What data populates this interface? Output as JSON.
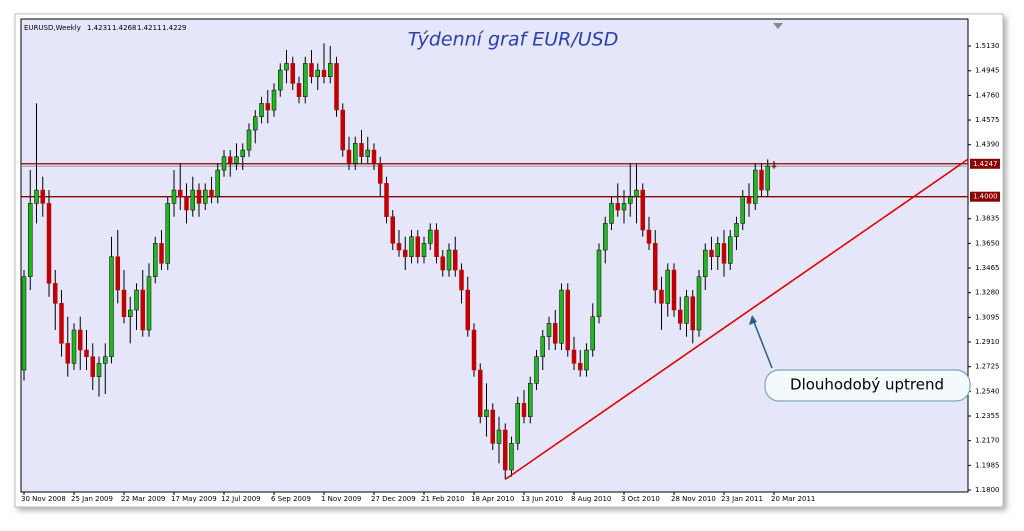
{
  "chart_data": {
    "type": "candlestick",
    "title": "Týdenní graf EUR/USD",
    "symbol": "EURUSD,Weekly",
    "annotation": "Dlouhodobý uptrend",
    "categories": [
      "30 Nov 2008",
      null,
      null,
      null,
      null,
      null,
      null,
      null,
      "25 Jan 2009",
      null,
      null,
      null,
      null,
      null,
      null,
      null,
      "22 Mar 2009",
      null,
      null,
      null,
      null,
      null,
      null,
      null,
      "17 May 2009",
      null,
      null,
      null,
      null,
      null,
      null,
      null,
      "12 Jul 2009",
      null,
      null,
      null,
      null,
      null,
      null,
      null,
      "6 Sep 2009",
      null,
      null,
      null,
      null,
      null,
      null,
      null,
      "1 Nov 2009",
      null,
      null,
      null,
      null,
      null,
      null,
      null,
      "27 Dec 2009",
      null,
      null,
      null,
      null,
      null,
      null,
      null,
      "21 Feb 2010",
      null,
      null,
      null,
      null,
      null,
      null,
      null,
      "18 Apr 2010",
      null,
      null,
      null,
      null,
      null,
      null,
      null,
      "13 Jun 2010",
      null,
      null,
      null,
      null,
      null,
      null,
      null,
      "8 Aug 2010",
      null,
      null,
      null,
      null,
      null,
      null,
      null,
      "3 Oct 2010",
      null,
      null,
      null,
      null,
      null,
      null,
      null,
      "28 Nov 2010",
      null,
      null,
      null,
      null,
      null,
      null,
      null,
      "23 Jan 2011",
      null,
      null,
      null,
      null,
      null,
      null,
      null,
      "20 Mar 2011"
    ],
    "open": [
      1.27,
      1.34,
      1.395,
      1.405,
      1.395,
      1.335,
      1.32,
      1.29,
      1.275,
      1.3,
      1.285,
      1.28,
      1.265,
      1.275,
      1.28,
      1.355,
      1.33,
      1.31,
      1.315,
      1.33,
      1.3,
      1.34,
      1.365,
      1.35,
      1.395,
      1.405,
      1.4,
      1.39,
      1.405,
      1.395,
      1.405,
      1.4,
      1.42,
      1.43,
      1.425,
      1.43,
      1.435,
      1.45,
      1.46,
      1.47,
      1.465,
      1.48,
      1.495,
      1.5,
      1.485,
      1.475,
      1.5,
      1.49,
      1.495,
      1.49,
      1.5,
      1.465,
      1.435,
      1.425,
      1.44,
      1.43,
      1.435,
      1.425,
      1.41,
      1.385,
      1.365,
      1.36,
      1.355,
      1.37,
      1.355,
      1.365,
      1.375,
      1.355,
      1.345,
      1.36,
      1.345,
      1.33,
      1.3,
      1.27,
      1.235,
      1.24,
      1.215,
      1.225,
      1.195,
      1.215,
      1.245,
      1.235,
      1.26,
      1.28,
      1.295,
      1.305,
      1.29,
      1.33,
      1.285,
      1.275,
      1.27,
      1.285,
      1.31,
      1.36,
      1.38,
      1.395,
      1.39,
      1.395,
      1.4,
      1.405,
      1.375,
      1.365,
      1.33,
      1.32,
      1.345,
      1.315,
      1.305,
      1.325,
      1.3,
      1.34,
      1.36,
      1.355,
      1.365,
      1.35,
      1.37,
      1.38,
      1.4,
      1.395,
      1.42,
      1.405,
      1.4231
    ],
    "high": [
      1.345,
      1.42,
      1.47,
      1.415,
      1.405,
      1.345,
      1.33,
      1.31,
      1.305,
      1.31,
      1.3,
      1.29,
      1.28,
      1.29,
      1.37,
      1.375,
      1.345,
      1.325,
      1.335,
      1.345,
      1.35,
      1.37,
      1.375,
      1.4,
      1.42,
      1.425,
      1.41,
      1.415,
      1.41,
      1.41,
      1.415,
      1.425,
      1.435,
      1.435,
      1.44,
      1.44,
      1.455,
      1.465,
      1.475,
      1.48,
      1.485,
      1.5,
      1.51,
      1.505,
      1.49,
      1.505,
      1.51,
      1.5,
      1.515,
      1.513,
      1.505,
      1.47,
      1.445,
      1.445,
      1.45,
      1.445,
      1.44,
      1.43,
      1.415,
      1.39,
      1.375,
      1.37,
      1.375,
      1.375,
      1.37,
      1.38,
      1.38,
      1.36,
      1.365,
      1.37,
      1.35,
      1.34,
      1.305,
      1.275,
      1.26,
      1.245,
      1.235,
      1.23,
      1.22,
      1.25,
      1.255,
      1.265,
      1.285,
      1.3,
      1.31,
      1.315,
      1.335,
      1.335,
      1.295,
      1.285,
      1.29,
      1.32,
      1.365,
      1.385,
      1.4,
      1.41,
      1.405,
      1.425,
      1.425,
      1.41,
      1.385,
      1.375,
      1.34,
      1.35,
      1.35,
      1.325,
      1.33,
      1.33,
      1.345,
      1.365,
      1.37,
      1.37,
      1.375,
      1.375,
      1.385,
      1.405,
      1.41,
      1.425,
      1.425,
      1.428,
      1.4268
    ],
    "low": [
      1.262,
      1.33,
      1.38,
      1.385,
      1.325,
      1.3,
      1.28,
      1.265,
      1.27,
      1.27,
      1.27,
      1.255,
      1.25,
      1.252,
      1.275,
      1.32,
      1.305,
      1.29,
      1.3,
      1.295,
      1.295,
      1.335,
      1.345,
      1.345,
      1.385,
      1.39,
      1.38,
      1.385,
      1.385,
      1.39,
      1.395,
      1.395,
      1.415,
      1.415,
      1.42,
      1.42,
      1.43,
      1.44,
      1.455,
      1.455,
      1.46,
      1.475,
      1.485,
      1.48,
      1.47,
      1.47,
      1.485,
      1.48,
      1.485,
      1.485,
      1.46,
      1.43,
      1.42,
      1.42,
      1.425,
      1.425,
      1.42,
      1.4,
      1.38,
      1.36,
      1.355,
      1.345,
      1.35,
      1.35,
      1.35,
      1.36,
      1.35,
      1.34,
      1.34,
      1.34,
      1.32,
      1.295,
      1.265,
      1.23,
      1.22,
      1.21,
      1.2,
      1.188,
      1.19,
      1.21,
      1.23,
      1.23,
      1.255,
      1.27,
      1.285,
      1.285,
      1.285,
      1.28,
      1.27,
      1.265,
      1.265,
      1.28,
      1.305,
      1.35,
      1.375,
      1.385,
      1.38,
      1.385,
      1.38,
      1.37,
      1.36,
      1.32,
      1.3,
      1.31,
      1.31,
      1.3,
      1.295,
      1.29,
      1.295,
      1.33,
      1.345,
      1.345,
      1.34,
      1.345,
      1.36,
      1.375,
      1.385,
      1.39,
      1.4,
      1.4,
      1.4211
    ],
    "close": [
      1.34,
      1.395,
      1.405,
      1.395,
      1.335,
      1.32,
      1.29,
      1.275,
      1.3,
      1.285,
      1.28,
      1.265,
      1.275,
      1.28,
      1.355,
      1.33,
      1.31,
      1.315,
      1.33,
      1.3,
      1.34,
      1.365,
      1.35,
      1.395,
      1.405,
      1.4,
      1.39,
      1.405,
      1.395,
      1.405,
      1.4,
      1.42,
      1.43,
      1.425,
      1.43,
      1.435,
      1.45,
      1.46,
      1.47,
      1.465,
      1.48,
      1.495,
      1.5,
      1.485,
      1.475,
      1.5,
      1.49,
      1.495,
      1.49,
      1.5,
      1.465,
      1.435,
      1.425,
      1.44,
      1.43,
      1.435,
      1.425,
      1.41,
      1.385,
      1.365,
      1.36,
      1.355,
      1.37,
      1.355,
      1.365,
      1.375,
      1.355,
      1.345,
      1.36,
      1.345,
      1.33,
      1.3,
      1.27,
      1.235,
      1.24,
      1.215,
      1.225,
      1.195,
      1.215,
      1.245,
      1.235,
      1.26,
      1.28,
      1.295,
      1.305,
      1.29,
      1.33,
      1.285,
      1.275,
      1.27,
      1.285,
      1.31,
      1.36,
      1.38,
      1.395,
      1.39,
      1.395,
      1.4,
      1.405,
      1.375,
      1.365,
      1.33,
      1.32,
      1.345,
      1.315,
      1.305,
      1.325,
      1.3,
      1.34,
      1.36,
      1.355,
      1.365,
      1.35,
      1.37,
      1.38,
      1.4,
      1.395,
      1.42,
      1.405,
      1.423,
      1.4229
    ],
    "up_color": "#22b522",
    "down_color": "#c00000",
    "ylim": [
      1.1785,
      1.5333
    ],
    "yticks": [
      {
        "value": 1.513,
        "label": "1.5130"
      },
      1.4945,
      {
        "value": 1.476,
        "label": "1.4760"
      },
      1.4575,
      {
        "value": 1.439,
        "label": "1.4390"
      },
      1.3835,
      {
        "value": 1.365,
        "label": "1.3650"
      },
      1.3465,
      {
        "value": 1.328,
        "label": "1.3280"
      },
      1.3095,
      {
        "value": 1.291,
        "label": "1.2910"
      },
      1.2725,
      {
        "value": 1.254,
        "label": "1.2540"
      },
      1.2355,
      {
        "value": 1.217,
        "label": "1.2170"
      },
      1.1985,
      {
        "value": 1.18,
        "label": "1.1800"
      }
    ],
    "levels": [
      1.4247,
      {
        "value": 1.4,
        "label": "1.4000"
      }
    ],
    "level_color": "#8b0000",
    "trendline": {
      "x": [
        77,
        151
      ],
      "y": [
        1.188,
        1.428
      ],
      "color": "#e00000"
    }
  }
}
